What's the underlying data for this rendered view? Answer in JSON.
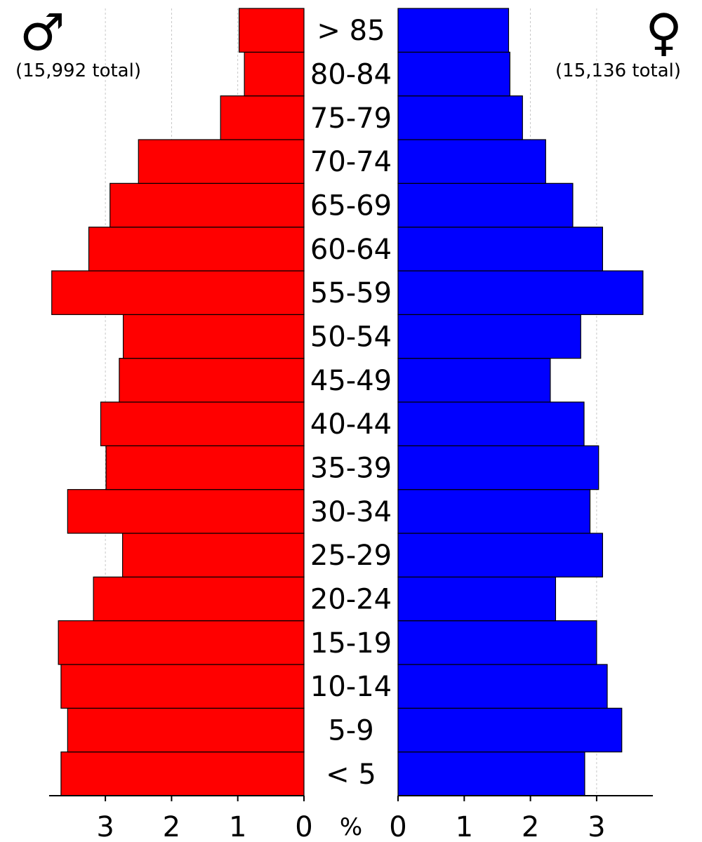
{
  "male": {
    "symbol": "♂",
    "total_label": "(15,992 total)",
    "color": "#ff0000"
  },
  "female": {
    "symbol": "♀",
    "total_label": "(15,136 total)",
    "color": "#0000ff"
  },
  "chart_data": {
    "type": "bar",
    "orientation": "horizontal-population-pyramid",
    "categories": [
      "< 5",
      "5-9",
      "10-14",
      "15-19",
      "20-24",
      "25-29",
      "30-34",
      "35-39",
      "40-44",
      "45-49",
      "50-54",
      "55-59",
      "60-64",
      "65-69",
      "70-74",
      "75-79",
      "80-84",
      "> 85"
    ],
    "series": [
      {
        "values": [
          3.67,
          3.57,
          3.67,
          3.71,
          3.18,
          2.74,
          3.57,
          2.99,
          3.07,
          2.79,
          2.73,
          3.81,
          3.25,
          2.93,
          2.5,
          1.26,
          0.9,
          0.98
        ]
      },
      {
        "values": [
          2.82,
          3.38,
          3.16,
          3.0,
          2.38,
          3.09,
          2.9,
          3.03,
          2.81,
          2.3,
          2.76,
          3.7,
          3.09,
          2.64,
          2.23,
          1.88,
          1.69,
          1.67
        ]
      }
    ],
    "xlabel": "%",
    "xticks": [
      0,
      1,
      2,
      3
    ],
    "xlim": [
      0,
      3.85
    ],
    "grid": true
  }
}
